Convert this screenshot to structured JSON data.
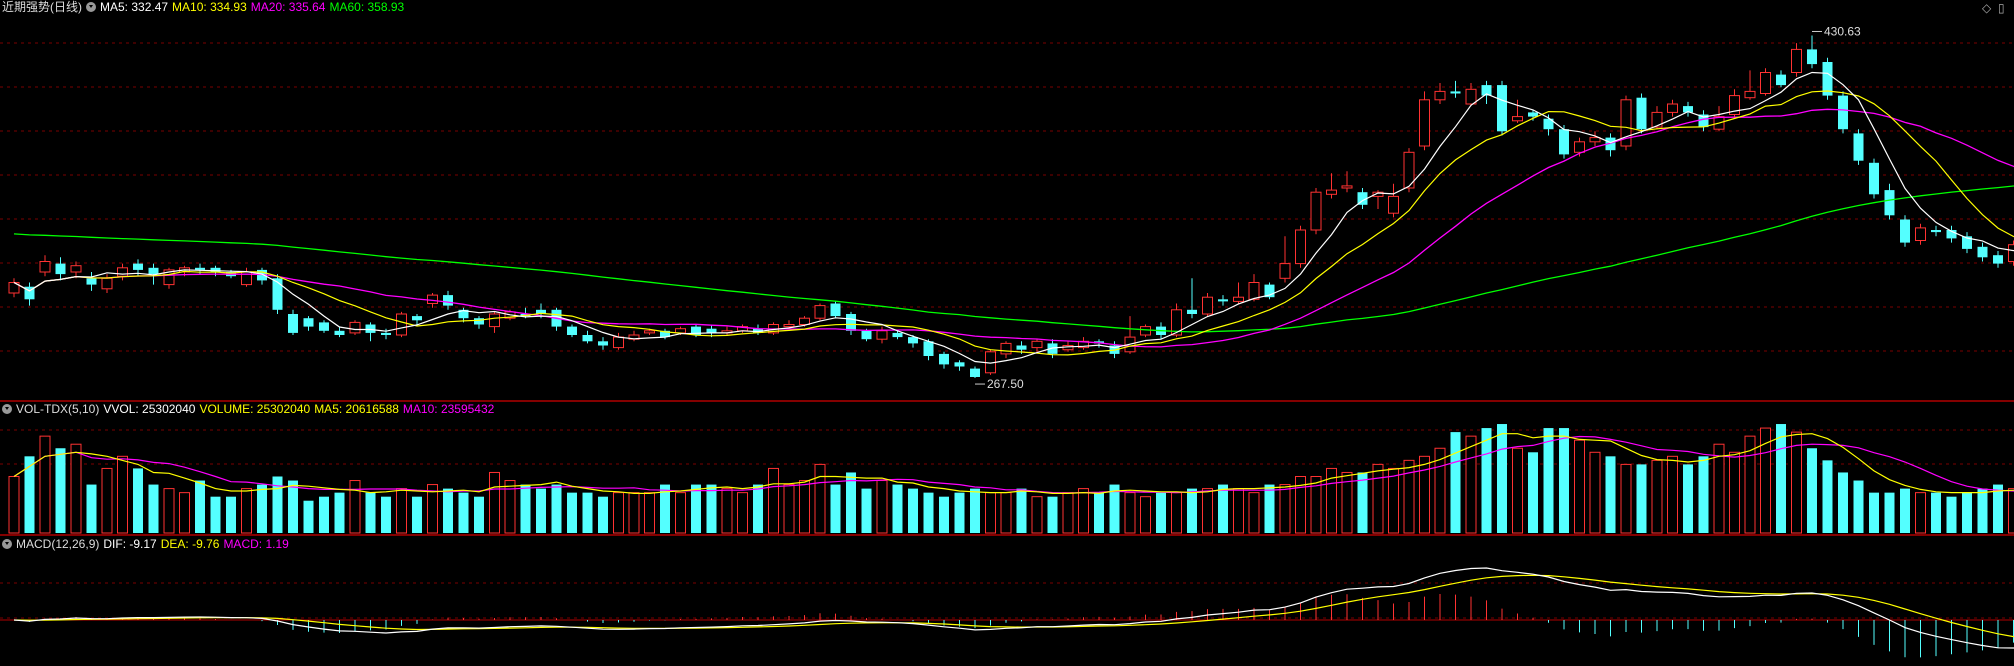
{
  "header_price": {
    "indicator_name": "近期强势(日线)",
    "ma5": "MA5: 332.47",
    "ma10": "MA10: 334.93",
    "ma20": "MA20: 335.64",
    "ma60": "MA60: 358.93"
  },
  "header_volume": {
    "indicator_name": "VOL-TDX(5,10)",
    "vvol": "VVOL: 25302040",
    "volume": "VOLUME: 25302040",
    "ma5": "MA5: 20616588",
    "ma10": "MA10: 23595432"
  },
  "header_macd": {
    "indicator_name": "MACD(12,26,9)",
    "dif": "DIF: -9.17",
    "dea": "DEA: -9.76",
    "macd": "MACD: 1.19"
  },
  "corner_icons": [
    "diamond-icon",
    "window-icon"
  ],
  "colors": {
    "background": "#000000",
    "up": "#ff3232",
    "down": "#54ffff",
    "ma5": "#ffffff",
    "ma10": "#ffff00",
    "ma20": "#ff00ff",
    "ma60": "#00ff00",
    "grid": "#7a0000",
    "separator": "#b00000"
  },
  "chart_data": [
    {
      "type": "candlestick",
      "title": "近期强势(日线)",
      "annotations": [
        {
          "label": "430.63",
          "kind": "high"
        },
        {
          "label": "267.50",
          "kind": "low"
        }
      ],
      "ylim": [
        258,
        438
      ],
      "candles": [
        [
          308,
          313,
          306,
          315
        ],
        [
          311,
          305,
          302,
          313
        ],
        [
          318,
          323,
          316,
          326
        ],
        [
          322,
          317,
          314,
          325
        ],
        [
          318,
          321,
          315,
          323
        ],
        [
          315,
          312,
          309,
          318
        ],
        [
          310,
          315,
          308,
          317
        ],
        [
          316,
          320,
          314,
          322
        ],
        [
          322,
          319,
          316,
          324
        ],
        [
          320,
          317,
          312,
          322
        ],
        [
          312,
          319,
          310,
          320
        ],
        [
          318,
          320,
          316,
          321
        ],
        [
          320,
          319,
          317,
          322
        ],
        [
          320,
          318,
          316,
          321
        ],
        [
          318,
          316,
          315,
          319
        ],
        [
          312,
          318,
          311,
          320
        ],
        [
          319,
          314,
          312,
          320
        ],
        [
          315,
          300,
          298,
          317
        ],
        [
          298,
          289,
          288,
          300
        ],
        [
          296,
          292,
          290,
          297
        ],
        [
          294,
          290,
          289,
          295
        ],
        [
          290,
          288,
          287,
          292
        ],
        [
          289,
          294,
          288,
          295
        ],
        [
          293,
          289,
          285,
          294
        ],
        [
          289,
          288,
          286,
          291
        ],
        [
          288,
          298,
          287,
          299
        ],
        [
          297,
          295,
          293,
          298
        ],
        [
          303,
          307,
          301,
          308
        ],
        [
          307,
          302,
          300,
          309
        ],
        [
          300,
          296,
          294,
          301
        ],
        [
          296,
          293,
          291,
          297
        ],
        [
          292,
          298,
          289,
          299
        ],
        [
          296,
          299,
          295,
          300
        ],
        [
          298,
          297,
          296,
          301
        ],
        [
          300,
          298,
          296,
          303
        ],
        [
          300,
          292,
          290,
          301
        ],
        [
          292,
          288,
          287,
          293
        ],
        [
          288,
          285,
          284,
          290
        ],
        [
          285,
          283,
          281,
          287
        ],
        [
          282,
          287,
          281,
          289
        ],
        [
          286,
          288,
          285,
          290
        ],
        [
          289,
          290,
          288,
          291
        ],
        [
          290,
          287,
          286,
          291
        ],
        [
          289,
          291,
          288,
          292
        ],
        [
          292,
          288,
          287,
          293
        ],
        [
          291,
          289,
          287,
          293
        ],
        [
          289,
          290,
          288,
          292
        ],
        [
          290,
          292,
          289,
          293
        ],
        [
          291,
          289,
          288,
          293
        ],
        [
          289,
          293,
          288,
          294
        ],
        [
          292,
          293,
          291,
          295
        ],
        [
          293,
          296,
          292,
          297
        ],
        [
          296,
          302,
          295,
          303
        ],
        [
          303,
          297,
          296,
          304
        ],
        [
          298,
          290,
          288,
          299
        ],
        [
          290,
          286,
          285,
          291
        ],
        [
          286,
          290,
          284,
          292
        ],
        [
          289,
          287,
          286,
          290
        ],
        [
          287,
          284,
          282,
          288
        ],
        [
          285,
          278,
          276,
          286
        ],
        [
          279,
          274,
          272,
          280
        ],
        [
          275,
          273,
          271,
          276
        ],
        [
          272,
          268,
          267.5,
          273
        ],
        [
          270,
          280,
          269,
          281
        ],
        [
          279,
          284,
          277,
          285
        ],
        [
          283,
          281,
          279,
          285
        ],
        [
          282,
          285,
          280,
          286
        ],
        [
          284,
          279,
          277,
          286
        ],
        [
          281,
          283,
          280,
          285
        ],
        [
          282,
          285,
          281,
          287
        ],
        [
          285,
          284,
          282,
          286
        ],
        [
          283,
          279,
          277,
          285
        ],
        [
          280,
          287,
          279,
          297
        ],
        [
          288,
          292,
          287,
          293
        ],
        [
          292,
          288,
          286,
          294
        ],
        [
          288,
          300,
          287,
          303
        ],
        [
          300,
          298,
          296,
          315
        ],
        [
          298,
          306,
          297,
          308
        ],
        [
          305,
          304,
          302,
          307
        ],
        [
          304,
          306,
          303,
          313
        ],
        [
          305,
          313,
          304,
          317
        ],
        [
          312,
          306,
          305,
          313
        ],
        [
          315,
          322,
          313,
          335
        ],
        [
          322,
          338,
          320,
          340
        ],
        [
          338,
          356,
          336,
          358
        ],
        [
          355,
          357,
          353,
          365
        ],
        [
          358,
          359,
          356,
          366
        ],
        [
          356,
          350,
          348,
          358
        ],
        [
          354,
          356,
          348,
          357
        ],
        [
          346,
          354,
          344,
          360
        ],
        [
          358,
          375,
          356,
          377
        ],
        [
          378,
          400,
          376,
          404
        ],
        [
          400,
          404,
          398,
          408
        ],
        [
          404,
          403,
          401,
          409
        ],
        [
          398,
          405,
          397,
          408
        ],
        [
          407,
          402,
          398,
          409
        ],
        [
          407,
          385,
          383,
          409
        ],
        [
          390,
          392,
          389,
          400
        ],
        [
          394,
          392,
          390,
          395
        ],
        [
          391,
          386,
          383,
          393
        ],
        [
          386,
          374,
          372,
          388
        ],
        [
          375,
          380,
          373,
          382
        ],
        [
          380,
          382,
          378,
          385
        ],
        [
          382,
          376,
          373,
          384
        ],
        [
          378,
          400,
          376,
          402
        ],
        [
          401,
          386,
          384,
          403
        ],
        [
          387,
          394,
          386,
          397
        ],
        [
          394,
          398,
          392,
          400
        ],
        [
          397,
          394,
          392,
          399
        ],
        [
          393,
          387,
          385,
          395
        ],
        [
          386,
          392,
          385,
          397
        ],
        [
          393,
          402,
          391,
          405
        ],
        [
          401,
          404,
          400,
          414
        ],
        [
          403,
          413,
          402,
          415
        ],
        [
          412,
          407,
          406,
          414
        ],
        [
          413,
          424,
          411,
          427
        ],
        [
          424,
          417,
          415,
          430.63
        ],
        [
          418,
          402,
          400,
          420
        ],
        [
          402,
          386,
          384,
          404
        ],
        [
          384,
          371,
          369,
          386
        ],
        [
          370,
          355,
          353,
          372
        ],
        [
          357,
          345,
          343,
          360
        ],
        [
          343,
          332,
          330,
          345
        ],
        [
          333,
          339,
          331,
          341
        ],
        [
          338,
          337,
          335,
          340
        ],
        [
          338,
          334,
          332,
          340
        ],
        [
          335,
          329,
          327,
          337
        ],
        [
          330,
          325,
          323,
          332
        ],
        [
          326,
          322,
          320,
          328
        ],
        [
          323,
          331,
          321,
          333
        ],
        [
          330,
          335,
          328,
          337
        ],
        [
          334,
          332,
          330,
          336
        ],
        [
          333,
          343,
          331,
          345
        ],
        [
          343,
          339,
          337,
          346
        ],
        [
          340,
          346,
          338,
          348
        ],
        [
          346,
          337,
          335,
          348
        ],
        [
          338,
          334,
          332,
          340
        ],
        [
          334,
          338,
          332,
          340
        ],
        [
          338,
          333,
          331,
          340
        ],
        [
          335,
          333,
          331,
          336
        ]
      ]
    },
    {
      "type": "bar",
      "title": "VOL-TDX(5,10)",
      "values": [
        14,
        19,
        24,
        21,
        22,
        12,
        16,
        19,
        16,
        12,
        11,
        10,
        13,
        9,
        9,
        11,
        12,
        14,
        13,
        8,
        9,
        10,
        13,
        10,
        9,
        11,
        9,
        12,
        11,
        10,
        9,
        15,
        13,
        12,
        11,
        12,
        10,
        10,
        9,
        10,
        10,
        10,
        12,
        10,
        12,
        12,
        11,
        10,
        12,
        16,
        12,
        13,
        17,
        12,
        15,
        11,
        13,
        12,
        11,
        10,
        9,
        10,
        11,
        10,
        10,
        11,
        9,
        9,
        10,
        11,
        10,
        12,
        10,
        9,
        10,
        10,
        11,
        11,
        12,
        11,
        10,
        12,
        12,
        14,
        14,
        16,
        15,
        15,
        17,
        16,
        18,
        19,
        21,
        25,
        24,
        26,
        27,
        21,
        20,
        26,
        26,
        23,
        20,
        19,
        17,
        17,
        18,
        19,
        17,
        19,
        22,
        20,
        24,
        26,
        27,
        25,
        21,
        18,
        15,
        13,
        10,
        10,
        11,
        10,
        10,
        9,
        10,
        11,
        12,
        11,
        12,
        11,
        12,
        10,
        11,
        11,
        10,
        12,
        11,
        13
      ],
      "ma5": "20616588",
      "ma10": "23595432"
    },
    {
      "type": "bar",
      "title": "MACD(12,26,9)",
      "dif": -9.17,
      "dea": -9.76,
      "macd": 1.19
    }
  ]
}
